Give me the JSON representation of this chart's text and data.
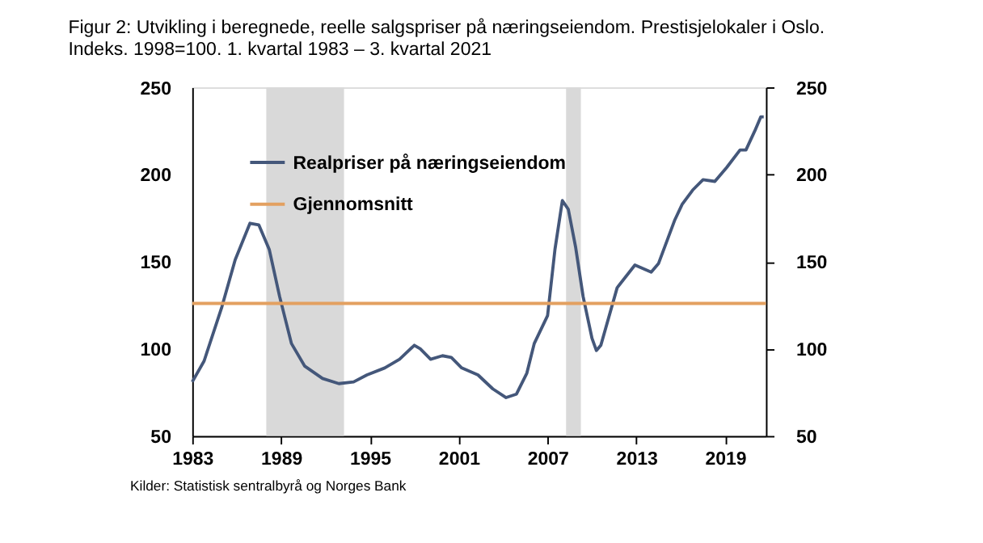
{
  "chart_data": {
    "type": "line",
    "title": "Figur 2: Utvikling i beregnede, reelle salgspriser på næringseiendom. Prestisjelokaler i Oslo. Indeks. 1998=100. 1. kvartal 1983 – 3. kvartal 2021",
    "series": [
      {
        "name": "Realpriser på næringseiendom",
        "color": "#44577a",
        "x": [
          1983.0,
          1983.8,
          1985.0,
          1985.9,
          1986.9,
          1987.5,
          1988.2,
          1988.9,
          1989.7,
          1990.6,
          1991.8,
          1992.9,
          1993.9,
          1994.8,
          1996.0,
          1997.0,
          1998.0,
          1998.4,
          1999.1,
          1999.9,
          2000.5,
          2001.2,
          2002.3,
          2003.3,
          2004.2,
          2004.9,
          2005.6,
          2006.1,
          2007.0,
          2007.5,
          2008.0,
          2008.4,
          2008.9,
          2009.4,
          2010.0,
          2010.3,
          2010.6,
          2011.7,
          2012.9,
          2014.0,
          2014.5,
          2015.6,
          2016.1,
          2016.8,
          2017.5,
          2018.3,
          2019.1,
          2020.0,
          2020.4,
          2021.0,
          2021.4,
          2021.6
        ],
        "values": [
          81,
          93,
          124,
          151,
          172,
          171,
          157,
          130,
          103,
          90,
          83,
          80,
          81,
          85,
          89,
          94,
          102,
          100,
          94,
          96,
          95,
          89,
          85,
          77,
          72,
          74,
          86,
          103,
          119,
          157,
          185,
          180,
          158,
          130,
          106,
          99,
          102,
          135,
          148,
          144,
          149,
          174,
          183,
          191,
          197,
          196,
          204,
          214,
          214,
          225,
          233,
          233
        ]
      }
    ],
    "ref_lines": [
      {
        "axis": "y",
        "value": 126,
        "label": "Gjennomsnitt",
        "color": "#e3a060"
      }
    ],
    "bands": [
      {
        "axis": "x",
        "from": 1988.0,
        "to": 1993.25,
        "color": "#d9d9d9"
      },
      {
        "axis": "x",
        "from": 2008.25,
        "to": 2009.25,
        "color": "#d9d9d9"
      }
    ],
    "xlim": [
      1983,
      2021.75
    ],
    "xticks": [
      1983,
      1989,
      1995,
      2001,
      2007,
      2013,
      2019
    ],
    "ylim": [
      50,
      250
    ],
    "yticks": [
      50,
      100,
      150,
      200,
      250
    ],
    "y2lim": [
      50,
      250
    ],
    "y2ticks": [
      50,
      100,
      150,
      200,
      250
    ],
    "grid": false,
    "legend": "top left",
    "annotations": [
      "Kilder: Statistisk sentralbyrå og Norges Bank"
    ]
  }
}
